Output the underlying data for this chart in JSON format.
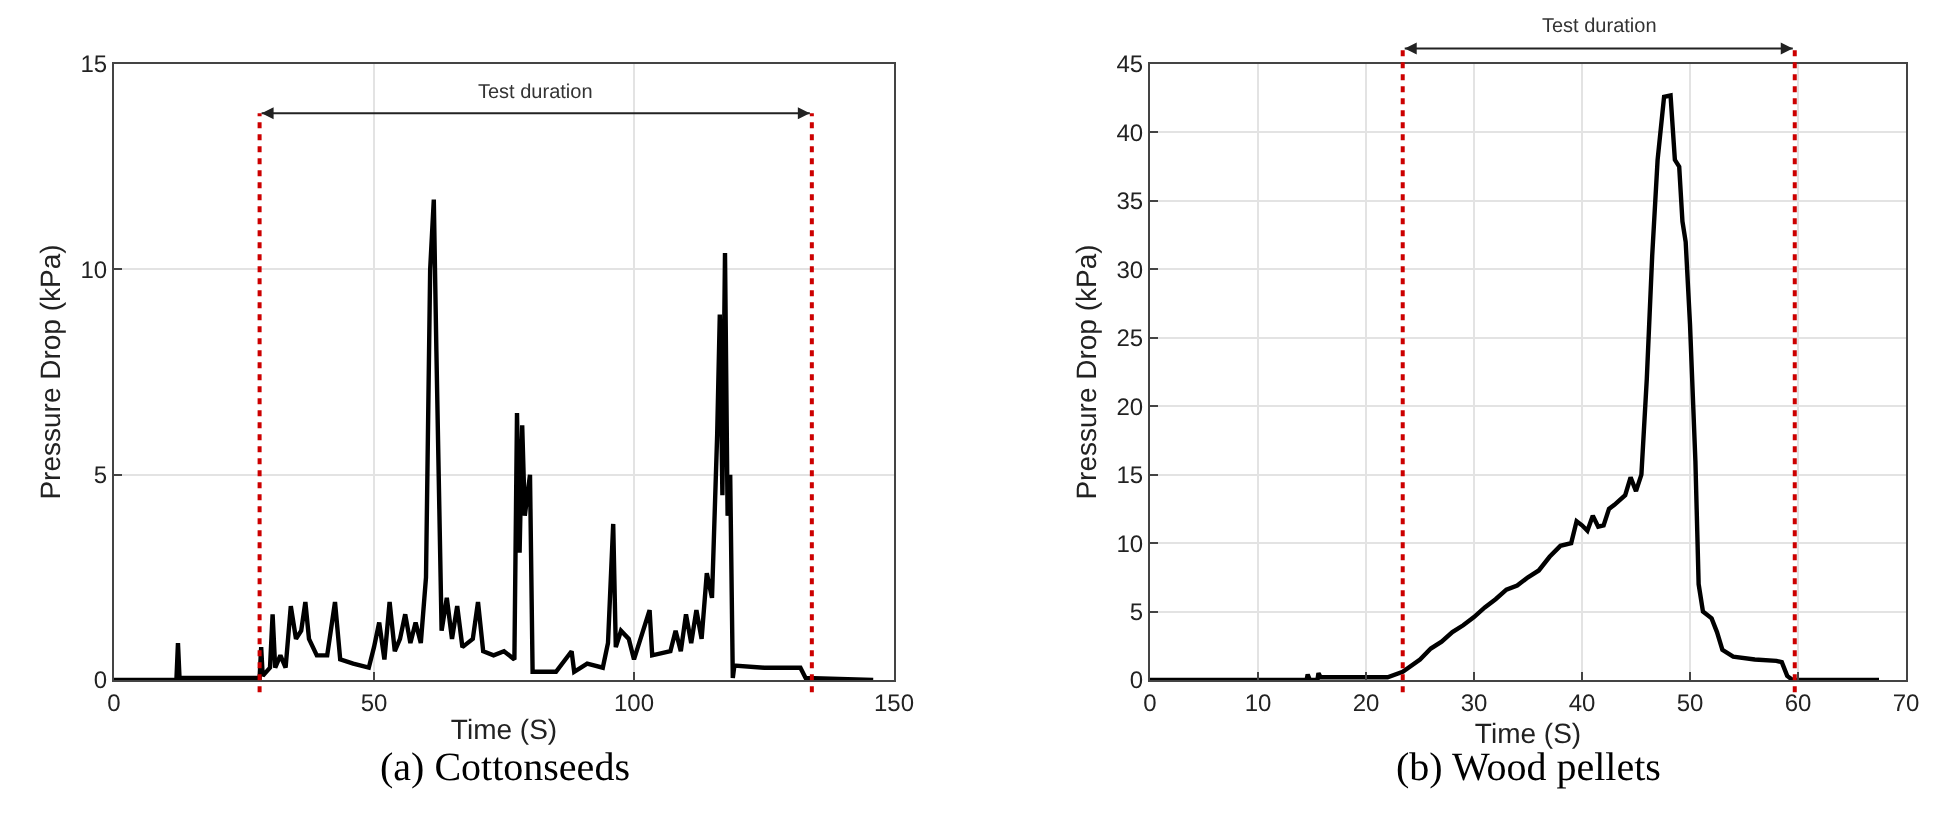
{
  "chart_data": [
    {
      "type": "line",
      "xlabel": "Time (S)",
      "ylabel": "Pressure Drop (kPa)",
      "xlim": [
        0,
        150
      ],
      "ylim": [
        0,
        15
      ],
      "xticks": [
        0,
        50,
        100,
        150
      ],
      "yticks": [
        0,
        5,
        10,
        15
      ],
      "grid": true,
      "marker": "none",
      "line_style": "solid",
      "x": [
        0,
        12,
        12.3,
        12.6,
        28,
        28.3,
        28.6,
        30,
        30.5,
        31,
        32,
        33,
        34,
        35,
        36,
        36.8,
        37.5,
        39,
        41,
        42.5,
        43.5,
        46,
        49,
        50,
        51,
        52,
        53,
        54,
        55,
        56,
        57,
        58,
        59,
        60,
        60.8,
        61.5,
        62,
        63,
        64,
        65,
        66,
        67,
        69,
        70,
        71,
        73,
        75,
        77,
        77.5,
        78,
        78.5,
        79,
        80,
        80.5,
        85,
        88,
        88.5,
        91,
        94,
        95,
        96,
        96.5,
        97.5,
        99,
        100,
        103,
        103.5,
        107,
        108,
        109,
        110,
        111,
        112,
        113,
        114,
        115,
        116,
        116.5,
        117,
        117.5,
        118,
        118.5,
        119,
        119.3,
        125,
        132,
        133,
        146
      ],
      "series": [
        {
          "color": "#000000",
          "values": [
            0,
            0,
            0.9,
            0.05,
            0.05,
            0.8,
            0.1,
            0.3,
            1.6,
            0.3,
            0.6,
            0.3,
            1.8,
            1.0,
            1.2,
            1.9,
            1.0,
            0.6,
            0.6,
            1.9,
            0.5,
            0.4,
            0.3,
            0.8,
            1.4,
            0.5,
            1.9,
            0.7,
            1.0,
            1.6,
            0.9,
            1.4,
            0.9,
            2.5,
            10.0,
            11.7,
            8.0,
            1.2,
            2.0,
            1.0,
            1.8,
            0.8,
            1.0,
            1.9,
            0.7,
            0.6,
            0.7,
            0.5,
            6.5,
            3.1,
            6.2,
            4.0,
            5.0,
            0.2,
            0.2,
            0.7,
            0.2,
            0.4,
            0.3,
            0.9,
            3.8,
            0.8,
            1.2,
            1.0,
            0.5,
            1.7,
            0.6,
            0.7,
            1.2,
            0.7,
            1.6,
            0.9,
            1.7,
            1.0,
            2.6,
            2.0,
            6.0,
            8.9,
            4.5,
            10.4,
            4.0,
            5.0,
            0.05,
            0.35,
            0.3,
            0.3,
            0.05,
            0
          ]
        }
      ],
      "ref_lines": [
        {
          "axis": "x",
          "value": 28,
          "color": "#cc0000",
          "line_style": "dotted"
        },
        {
          "axis": "x",
          "value": 134.2,
          "color": "#cc0000",
          "line_style": "dotted"
        }
      ],
      "annotations": [
        "Test duration",
        "(a) Cottonseeds"
      ]
    },
    {
      "type": "line",
      "xlabel": "Time (S)",
      "ylabel": "Pressure Drop (kPa)",
      "xlim": [
        0,
        70
      ],
      "ylim": [
        0,
        45
      ],
      "xticks": [
        0,
        10,
        20,
        30,
        40,
        50,
        60,
        70
      ],
      "yticks": [
        0,
        5,
        10,
        15,
        20,
        25,
        30,
        35,
        40,
        45
      ],
      "grid": true,
      "marker": "none",
      "line_style": "solid",
      "x": [
        0,
        14.5,
        14.6,
        14.8,
        15.5,
        15.6,
        15.8,
        22,
        23.4,
        25,
        26,
        27,
        28,
        29,
        30,
        31,
        32,
        33,
        34,
        35,
        36,
        37,
        38,
        39,
        39.5,
        40,
        40.5,
        41,
        41.5,
        42,
        42.5,
        43,
        44,
        44.5,
        45,
        45.5,
        46,
        46.5,
        47,
        47.6,
        48.2,
        48.6,
        49,
        49.3,
        49.6,
        50,
        50.5,
        50.8,
        51.2,
        52,
        52.5,
        53,
        54,
        56,
        58,
        58.5,
        59,
        59.5,
        67.5
      ],
      "series": [
        {
          "color": "#000000",
          "values": [
            0,
            0,
            0.4,
            0,
            0,
            0.5,
            0.2,
            0.2,
            0.6,
            1.5,
            2.3,
            2.8,
            3.5,
            4.0,
            4.6,
            5.3,
            5.9,
            6.6,
            6.9,
            7.5,
            8.0,
            9.0,
            9.8,
            10.0,
            11.6,
            11.3,
            10.9,
            12.0,
            11.2,
            11.3,
            12.5,
            12.8,
            13.5,
            14.8,
            13.8,
            15,
            22,
            31,
            38,
            42.6,
            42.7,
            38,
            37.5,
            33.5,
            32,
            26,
            16,
            7,
            5,
            4.5,
            3.5,
            2.2,
            1.7,
            1.5,
            1.4,
            1.3,
            0.3,
            0,
            0
          ]
        }
      ],
      "ref_lines": [
        {
          "axis": "x",
          "value": 23.4,
          "color": "#cc0000",
          "line_style": "dotted"
        },
        {
          "axis": "x",
          "value": 59.7,
          "color": "#cc0000",
          "line_style": "dotted"
        }
      ],
      "annotations": [
        "Test duration",
        "(b) Wood pellets"
      ]
    }
  ]
}
